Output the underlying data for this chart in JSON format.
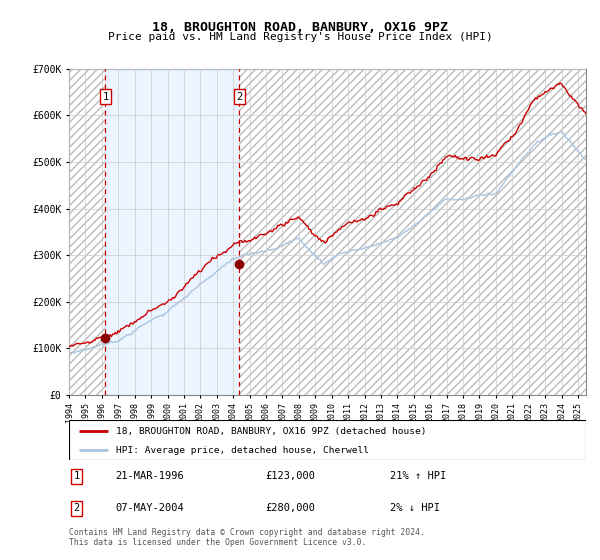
{
  "title": "18, BROUGHTON ROAD, BANBURY, OX16 9PZ",
  "subtitle": "Price paid vs. HM Land Registry's House Price Index (HPI)",
  "sale1_date": "21-MAR-1996",
  "sale1_price": 123000,
  "sale1_hpi_pct": "21% ↑ HPI",
  "sale1_year": 1996.22,
  "sale2_date": "07-MAY-2004",
  "sale2_price": 280000,
  "sale2_hpi_pct": "2% ↓ HPI",
  "sale2_year": 2004.37,
  "legend_line1": "18, BROUGHTON ROAD, BANBURY, OX16 9PZ (detached house)",
  "legend_line2": "HPI: Average price, detached house, Cherwell",
  "footer": "Contains HM Land Registry data © Crown copyright and database right 2024.\nThis data is licensed under the Open Government Licence v3.0.",
  "hpi_color": "#aac4e0",
  "price_color": "#cc0000",
  "marker_color": "#8b0000",
  "bg_shade_color": "#ddeeff",
  "dashed_line_color": "#cc0000",
  "grid_color": "#cccccc",
  "hatch_color": "#bbbbbb",
  "ylim": [
    0,
    700000
  ],
  "xlim_start": 1994.0,
  "xlim_end": 2025.5,
  "n_points": 380
}
